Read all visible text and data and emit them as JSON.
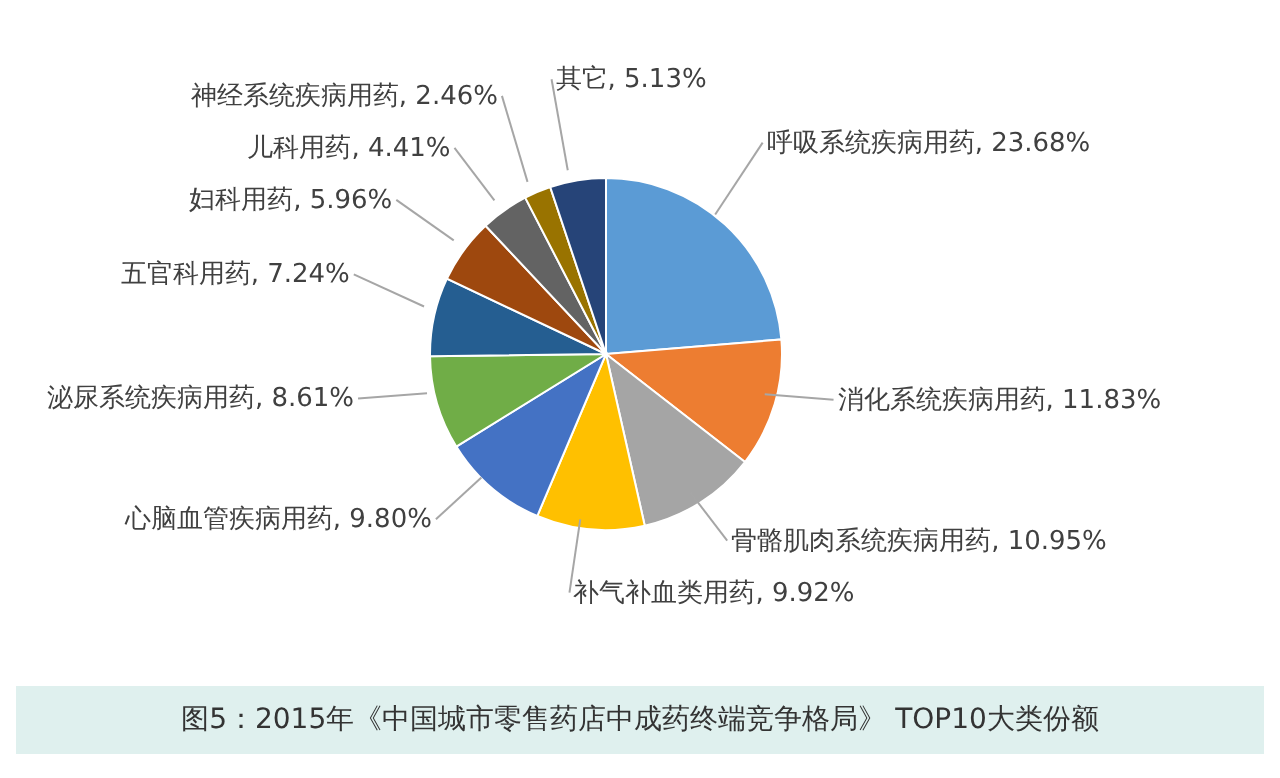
{
  "chart_data": {
    "type": "pie",
    "categories": [
      "呼吸系统疾病用药",
      "消化系统疾病用药",
      "骨骼肌肉系统疾病用药",
      "补气补血类用药",
      "心脑血管疾病用药",
      "泌尿系统疾病用药",
      "五官科用药",
      "妇科用药",
      "儿科用药",
      "神经系统疾病用药",
      "其它"
    ],
    "values": [
      23.68,
      11.83,
      10.95,
      9.92,
      9.8,
      8.61,
      7.24,
      5.96,
      4.41,
      2.46,
      5.13
    ],
    "value_labels": [
      "23.68%",
      "11.83%",
      "10.95%",
      "9.92%",
      "9.80%",
      "8.61%",
      "7.24%",
      "5.96%",
      "4.41%",
      "2.46%",
      "5.13%"
    ],
    "colors": [
      "#5b9bd5",
      "#ed7d31",
      "#a5a5a5",
      "#ffc000",
      "#4472c4",
      "#70ad47",
      "#255e91",
      "#9e480e",
      "#636363",
      "#997300",
      "#264478"
    ],
    "legend": false,
    "annotations": [
      "图5：2015年《中国城市零售药店中成药终端竞争格局》 TOP10大类份额"
    ]
  }
}
